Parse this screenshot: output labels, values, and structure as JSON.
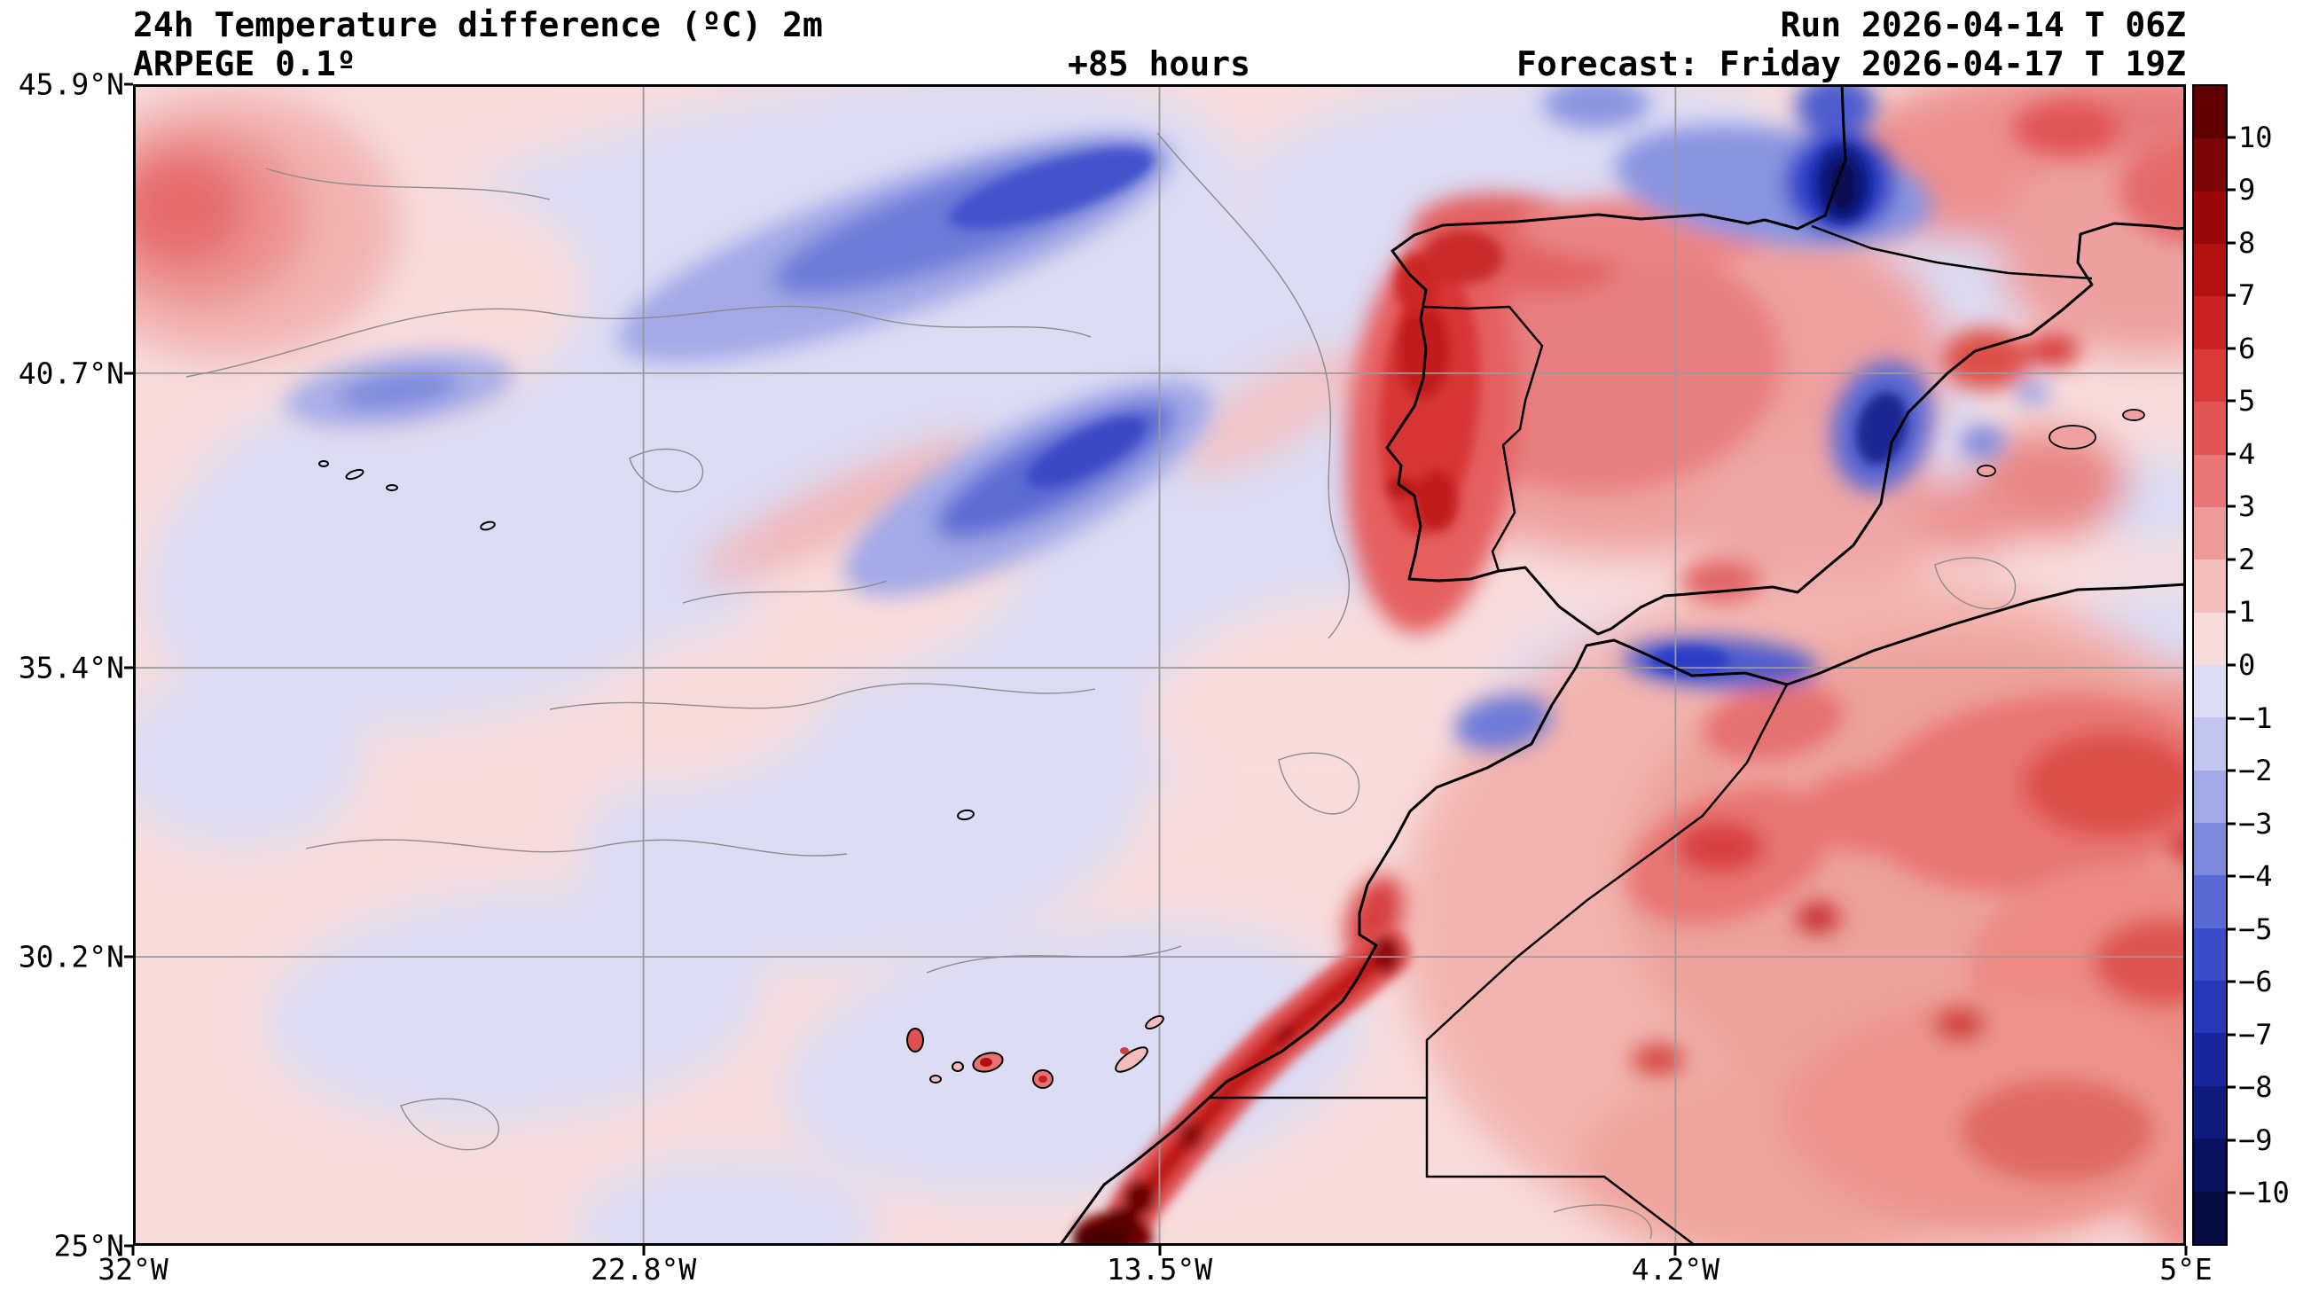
{
  "header": {
    "title_line1": "24h Temperature difference (ºC) 2m",
    "title_line2": "ARPEGE 0.1º",
    "lead_time": "+85 hours",
    "run_label": "Run 2026-04-14 T 06Z",
    "forecast_label": "Forecast: Friday 2026-04-17 T 19Z"
  },
  "map": {
    "axes": {
      "lon_min": -32,
      "lon_max": 5,
      "lat_min": 25,
      "lat_max": 45.9,
      "x_ticks": [
        {
          "label": "32°W",
          "lon": -32
        },
        {
          "label": "22.8°W",
          "lon": -22.8
        },
        {
          "label": "13.5°W",
          "lon": -13.5
        },
        {
          "label": "4.2°W",
          "lon": -4.2
        },
        {
          "label": "5°E",
          "lon": 5
        }
      ],
      "y_ticks": [
        {
          "label": "45.9°N",
          "lat": 45.9
        },
        {
          "label": "40.7°N",
          "lat": 40.7
        },
        {
          "label": "35.4°N",
          "lat": 35.4
        },
        {
          "label": "30.2°N",
          "lat": 30.2
        },
        {
          "label": "25°N",
          "lat": 25
        }
      ],
      "grid_lons": [
        -22.8,
        -13.5,
        -4.2
      ],
      "grid_lats": [
        40.7,
        35.4,
        30.2
      ]
    }
  },
  "colorbar": {
    "ticks": [
      {
        "label": "10",
        "value": 10
      },
      {
        "label": "9",
        "value": 9
      },
      {
        "label": "8",
        "value": 8
      },
      {
        "label": "7",
        "value": 7
      },
      {
        "label": "6",
        "value": 6
      },
      {
        "label": "5",
        "value": 5
      },
      {
        "label": "4",
        "value": 4
      },
      {
        "label": "3",
        "value": 3
      },
      {
        "label": "2",
        "value": 2
      },
      {
        "label": "1",
        "value": 1
      },
      {
        "label": "0",
        "value": 0
      },
      {
        "label": "−1",
        "value": -1
      },
      {
        "label": "−2",
        "value": -2
      },
      {
        "label": "−3",
        "value": -3
      },
      {
        "label": "−4",
        "value": -4
      },
      {
        "label": "−5",
        "value": -5
      },
      {
        "label": "−6",
        "value": -6
      },
      {
        "label": "−7",
        "value": -7
      },
      {
        "label": "−8",
        "value": -8
      },
      {
        "label": "−9",
        "value": -9
      },
      {
        "label": "−10",
        "value": -10
      }
    ],
    "segment_colors_top_to_bottom": [
      "#5f0000",
      "#7c0404",
      "#990909",
      "#b31212",
      "#c92222",
      "#d83a3a",
      "#e25555",
      "#e97676",
      "#ef9a9a",
      "#f4bcbc",
      "#f8dcdc",
      "#dcdcf4",
      "#c2c5ee",
      "#a2a9e6",
      "#7e89dd",
      "#5a6ad4",
      "#3b4cc8",
      "#2738b8",
      "#19279e",
      "#101b7e",
      "#0a1260",
      "#050a40"
    ]
  }
}
